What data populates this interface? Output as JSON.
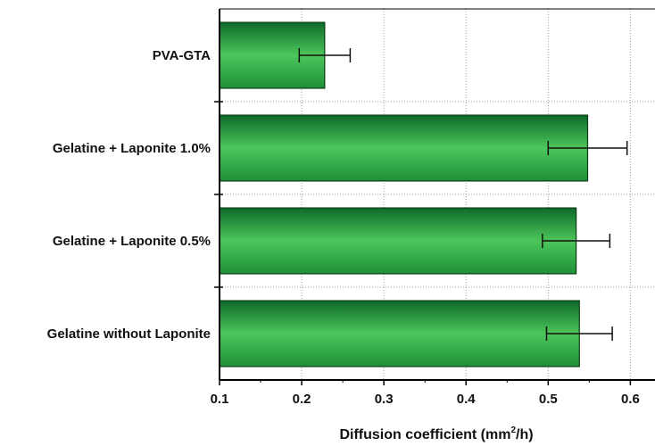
{
  "chart_data": {
    "type": "bar",
    "orientation": "horizontal",
    "categories": [
      "PVA-GTA",
      "Gelatine + Laponite 1.0%",
      "Gelatine + Laponite 0.5%",
      "Gelatine without Laponite"
    ],
    "values": [
      0.228,
      0.548,
      0.534,
      0.538
    ],
    "errors": [
      0.031,
      0.048,
      0.041,
      0.04
    ],
    "xlabel": {
      "prefix": "Diffusion coefficient (mm",
      "sup": "2",
      "suffix": "/h)"
    },
    "xlim": [
      0.1,
      0.63
    ],
    "xticks": [
      "0.1",
      "0.2",
      "0.3",
      "0.4",
      "0.5",
      "0.6"
    ],
    "grid": true,
    "colors": {
      "bar_dark": "#0f6a2a",
      "bar_light": "#4cc65a",
      "bar_edge": "#0b3d14",
      "grid": "#9a9a9a"
    }
  }
}
